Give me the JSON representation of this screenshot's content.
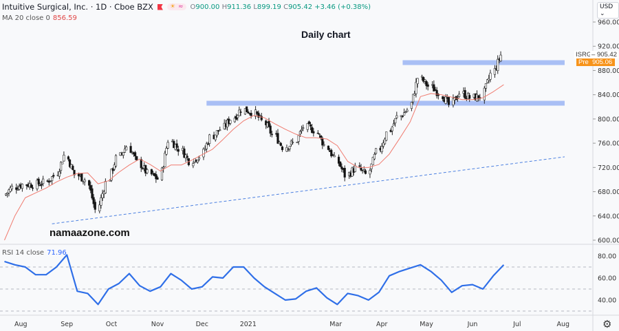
{
  "header": {
    "title": "Intuitive Surgical, Inc. · 1D · Cboe BZX",
    "ohlc": [
      {
        "k": "O",
        "v": "900.00"
      },
      {
        "k": "H",
        "v": "911.36"
      },
      {
        "k": "L",
        "v": "899.19"
      },
      {
        "k": "C",
        "v": "905.42"
      }
    ],
    "change": "+3.46 (+0.38%)",
    "icons": [
      "flag-icon",
      "sun-icon",
      "wave-icon"
    ]
  },
  "ma_legend": {
    "label": "MA 20 close 0",
    "value": "856.59"
  },
  "rsi_legend": {
    "label": "RSI 14 close",
    "value": "71.96"
  },
  "currency": "USD ⌄",
  "annotation": "Daily chart",
  "watermark": "namaazone.com",
  "last_price": {
    "symbol": "ISRG",
    "value": "905.42"
  },
  "pre_price": {
    "label": "Pre",
    "value": "905.06"
  },
  "colors": {
    "ma": "#f07b6f",
    "rsi": "#2f6fe8",
    "band": "#a9bff5",
    "trend": "#4a7fe0",
    "pre": "#f7931a",
    "up": "#ffffff",
    "down": "#111111"
  },
  "chart_data": {
    "type": "candlestick",
    "price_axis": {
      "ticks": [
        "960.00",
        "920.00",
        "880.00",
        "840.00",
        "800.00",
        "760.00",
        "720.00",
        "680.00",
        "640.00",
        "600.00"
      ],
      "range": [
        600,
        960
      ]
    },
    "rsi_axis": {
      "ticks": [
        "80.00",
        "60.00",
        "40.00"
      ],
      "range": [
        20,
        85
      ],
      "levels": [
        70,
        50,
        30
      ]
    },
    "x_ticks": [
      "Aug",
      "Sep",
      "Oct",
      "Nov",
      "Dec",
      "2021",
      "Mar",
      "Apr",
      "May",
      "Jun",
      "Jul",
      "Aug"
    ],
    "x_tick_dates": [
      "2020-08-01",
      "2020-09-01",
      "2020-10-01",
      "2020-11-01",
      "2020-12-01",
      "2021-01-01",
      "2021-03-01",
      "2021-04-01",
      "2021-05-01",
      "2021-06-01",
      "2021-07-01",
      "2021-08-01"
    ],
    "x_range": [
      "2020-07-18",
      "2021-08-21"
    ],
    "dates": [
      "2020-07-20",
      "2020-07-27",
      "2020-08-03",
      "2020-08-10",
      "2020-08-17",
      "2020-08-24",
      "2020-08-31",
      "2020-09-07",
      "2020-09-14",
      "2020-09-21",
      "2020-09-28",
      "2020-10-05",
      "2020-10-12",
      "2020-10-19",
      "2020-10-26",
      "2020-11-02",
      "2020-11-09",
      "2020-11-16",
      "2020-11-23",
      "2020-11-30",
      "2020-12-07",
      "2020-12-14",
      "2020-12-21",
      "2020-12-28",
      "2021-01-04",
      "2021-01-11",
      "2021-01-18",
      "2021-01-25",
      "2021-02-01",
      "2021-02-08",
      "2021-02-15",
      "2021-02-22",
      "2021-03-01",
      "2021-03-08",
      "2021-03-15",
      "2021-03-22",
      "2021-03-29",
      "2021-04-05",
      "2021-04-12",
      "2021-04-19",
      "2021-04-26",
      "2021-05-03",
      "2021-05-10",
      "2021-05-17",
      "2021-05-24",
      "2021-05-31",
      "2021-06-07",
      "2021-06-14",
      "2021-06-21"
    ],
    "close": [
      674,
      687,
      692,
      692,
      695,
      706,
      740,
      708,
      700,
      650,
      695,
      735,
      755,
      728,
      710,
      701,
      765,
      751,
      731,
      739,
      770,
      783,
      800,
      816,
      812,
      796,
      774,
      754,
      760,
      787,
      782,
      757,
      733,
      707,
      719,
      708,
      745,
      777,
      803,
      815,
      868,
      854,
      843,
      823,
      843,
      835,
      837,
      874,
      905.42
    ],
    "ma20": [
      600,
      640,
      670,
      678,
      686,
      696,
      704,
      710,
      711,
      693,
      698,
      712,
      724,
      734,
      725,
      714,
      724,
      724,
      732,
      741,
      750,
      766,
      783,
      797,
      806,
      802,
      792,
      783,
      775,
      769,
      769,
      767,
      756,
      730,
      720,
      720,
      725,
      742,
      768,
      795,
      837,
      842,
      840,
      836,
      832,
      832,
      835,
      845,
      856.59
    ],
    "rsi14": [
      75,
      72,
      70,
      63,
      63,
      70,
      81,
      48,
      46,
      36,
      50,
      55,
      64,
      53,
      48,
      52,
      64,
      58,
      50,
      52,
      61,
      60,
      70,
      70,
      60,
      52,
      46,
      40,
      41,
      48,
      51,
      42,
      36,
      46,
      44,
      40,
      47,
      62,
      66,
      69,
      72,
      66,
      58,
      47,
      53,
      54,
      50,
      62,
      71.96
    ],
    "bands": [
      {
        "price": 893,
        "from": "2021-04-15",
        "to": "2021-08-02"
      },
      {
        "price": 826,
        "from": "2020-12-04",
        "to": "2021-08-02"
      }
    ],
    "trendline": {
      "from": {
        "date": "2020-08-22",
        "price": 627
      },
      "to": {
        "date": "2021-08-02",
        "price": 737.5
      }
    }
  }
}
